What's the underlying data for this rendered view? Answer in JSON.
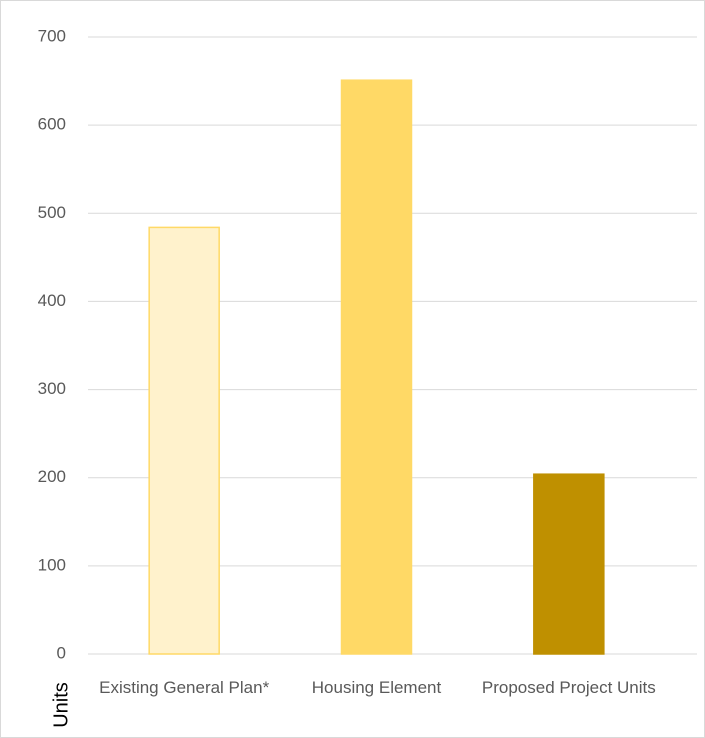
{
  "chart_data": {
    "type": "bar",
    "y_label": "Units",
    "categories": [
      "Existing General Plan*",
      "Housing Element",
      "Proposed Project Units"
    ],
    "values": [
      484,
      651,
      204
    ],
    "colors": [
      "#fff2cc",
      "#ffd966",
      "#bf9000"
    ],
    "edge_colors": [
      "#ffd966",
      "#ffd966",
      "#bf9000"
    ],
    "ylim": [
      0,
      700
    ],
    "yticks": [
      0,
      100,
      200,
      300,
      400,
      500,
      600,
      700
    ],
    "grid": true
  }
}
